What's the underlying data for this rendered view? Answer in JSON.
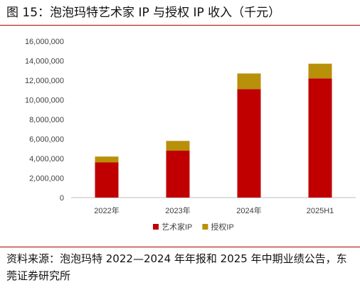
{
  "figure": {
    "title": "图 15：泡泡玛特艺术家 IP 与授权 IP 收入（千元）",
    "source": "资料来源：泡泡玛特 2022—2024 年年报和 2025 年中期业绩公告，东莞证券研究所"
  },
  "chart_data": {
    "type": "bar",
    "stacked": true,
    "categories": [
      "2022年",
      "2023年",
      "2024年",
      "2025H1"
    ],
    "series": [
      {
        "name": "艺术家IP",
        "color": "#c00000",
        "values": [
          3600000,
          4800000,
          11100000,
          12200000
        ]
      },
      {
        "name": "授权IP",
        "color": "#b8900a",
        "values": [
          600000,
          1000000,
          1600000,
          1500000
        ]
      }
    ],
    "y_ticks": [
      "0",
      "2,000,000",
      "4,000,000",
      "6,000,000",
      "8,000,000",
      "10,000,000",
      "12,000,000",
      "14,000,000",
      "16,000,000"
    ],
    "ylim": [
      0,
      16000000
    ],
    "grid": false,
    "legend_position": "bottom"
  }
}
